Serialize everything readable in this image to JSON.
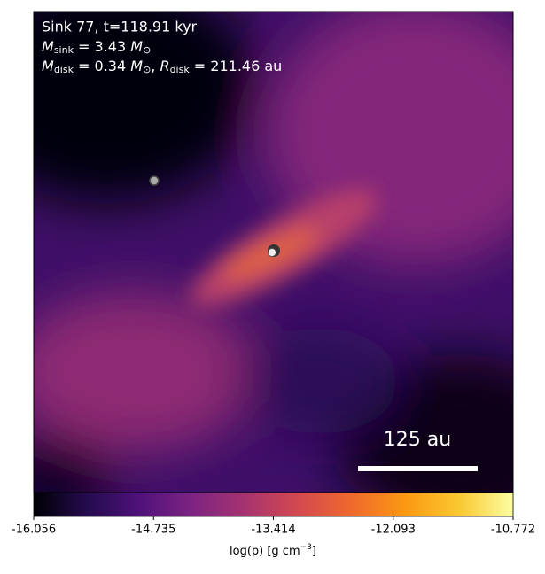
{
  "chart_data": {
    "type": "image",
    "annotations": {
      "line1": "Sink 77, t=118.91 kyr",
      "m_symbol": "M",
      "m_sub": "sink",
      "m_value": " = 3.43 ",
      "m_unit": "M",
      "m_unit_sub": "⊙",
      "d_symbol": "M",
      "d_sub": "disk",
      "d_value": " = 0.34 ",
      "d_unit": "M",
      "d_unit_sub": "⊙",
      "r_sep": ", ",
      "r_symbol": "R",
      "r_sub": "disk",
      "r_value": " = 211.46 au"
    },
    "scale_bar": {
      "label": "125 au"
    },
    "colorbar": {
      "xlim": [
        -16.056,
        -10.772
      ],
      "xticks": [
        -16.056,
        -14.735,
        -13.414,
        -12.093,
        -10.772
      ],
      "label": "log(ρ) [g cm",
      "label_sup": "−3",
      "label_end": "]",
      "colors": [
        "#000004",
        "#240b4e",
        "#50127a",
        "#7e2482",
        "#a8336f",
        "#d44a4e",
        "#f06a2c",
        "#fb9a12",
        "#f9c932",
        "#fcffa4"
      ]
    }
  }
}
